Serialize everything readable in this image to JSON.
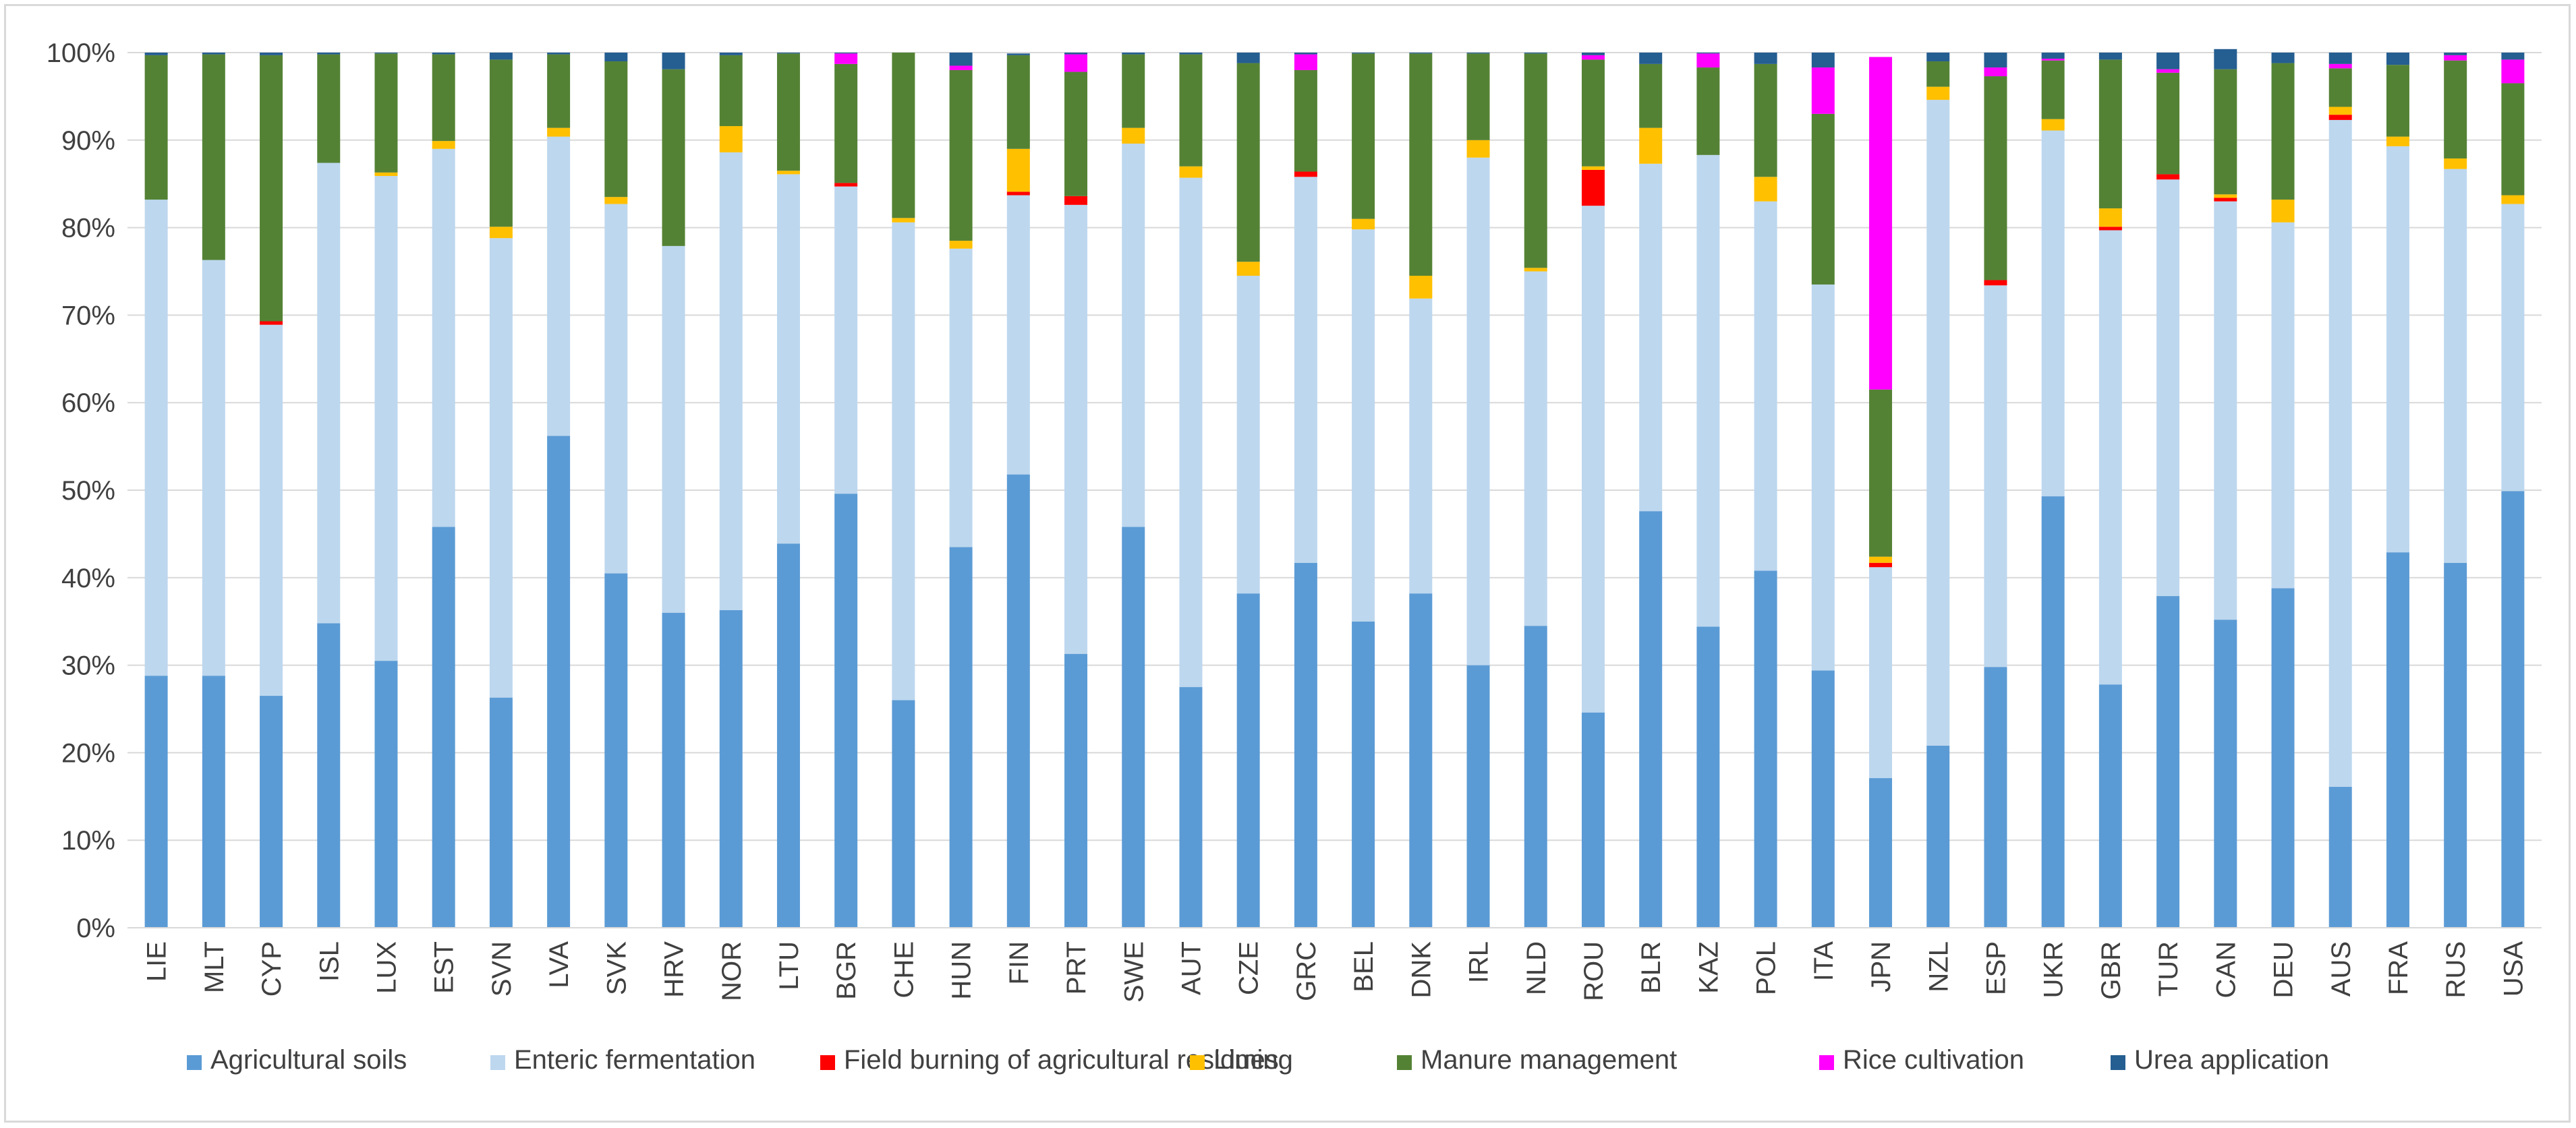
{
  "chart_data": {
    "type": "bar",
    "stacked": true,
    "ylim": [
      0,
      100
    ],
    "ytick_labels": [
      "0%",
      "10%",
      "20%",
      "30%",
      "40%",
      "50%",
      "60%",
      "70%",
      "80%",
      "90%",
      "100%"
    ],
    "legend_position": "bottom",
    "categories": [
      "LIE",
      "MLT",
      "CYP",
      "ISL",
      "LUX",
      "EST",
      "SVN",
      "LVA",
      "SVK",
      "HRV",
      "NOR",
      "LTU",
      "BGR",
      "CHE",
      "HUN",
      "FIN",
      "PRT",
      "SWE",
      "AUT",
      "CZE",
      "GRC",
      "BEL",
      "DNK",
      "IRL",
      "NLD",
      "ROU",
      "BLR",
      "KAZ",
      "POL",
      "ITA",
      "JPN",
      "NZL",
      "ESP",
      "UKR",
      "GBR",
      "TUR",
      "CAN",
      "DEU",
      "AUS",
      "FRA",
      "RUS",
      "USA"
    ],
    "series": [
      {
        "name": "Agricultural soils",
        "color": "#5b9bd5",
        "values": [
          28.8,
          28.8,
          26.5,
          34.8,
          30.5,
          45.8,
          26.3,
          56.2,
          40.5,
          36.0,
          36.3,
          43.9,
          49.6,
          26.0,
          43.5,
          51.8,
          31.3,
          45.8,
          27.5,
          38.2,
          41.7,
          35.0,
          38.2,
          30.0,
          34.5,
          24.6,
          47.6,
          34.4,
          40.8,
          29.4,
          17.1,
          20.8,
          29.8,
          49.3,
          27.8,
          37.9,
          35.2,
          38.8,
          16.1,
          42.9,
          41.7,
          49.9
        ]
      },
      {
        "name": "Enteric fermentation",
        "color": "#bdd7ee",
        "values": [
          54.4,
          47.5,
          42.4,
          52.6,
          55.4,
          43.2,
          52.5,
          34.2,
          42.2,
          41.9,
          52.3,
          42.2,
          35.1,
          54.6,
          34.1,
          31.9,
          51.3,
          43.8,
          58.2,
          36.3,
          44.1,
          44.8,
          33.7,
          58.0,
          40.5,
          57.9,
          39.7,
          53.9,
          42.2,
          44.1,
          24.1,
          73.8,
          43.6,
          41.8,
          51.9,
          47.6,
          47.8,
          41.8,
          76.2,
          46.4,
          45.0,
          32.8
        ]
      },
      {
        "name": "Field burning of agricultural residues",
        "color": "#ff0000",
        "values": [
          0,
          0,
          0.4,
          0,
          0,
          0,
          0,
          0,
          0,
          0,
          0,
          0,
          0.4,
          0,
          0,
          0.4,
          1.0,
          0,
          0,
          0,
          0.6,
          0,
          0,
          0,
          0,
          4.1,
          0,
          0,
          0,
          0,
          0.5,
          0,
          0.6,
          0,
          0.4,
          0.6,
          0.4,
          0,
          0.6,
          0,
          0,
          0
        ]
      },
      {
        "name": "Liming",
        "color": "#ffc000",
        "values": [
          0,
          0,
          0,
          0,
          0.4,
          0.9,
          1.3,
          1.0,
          0.8,
          0,
          3.0,
          0.4,
          0,
          0.5,
          0.9,
          4.9,
          0,
          1.8,
          1.3,
          1.6,
          0,
          1.2,
          2.6,
          2.0,
          0.4,
          0.4,
          4.1,
          0,
          2.8,
          0,
          0.7,
          1.5,
          0,
          1.3,
          2.1,
          0,
          0.4,
          2.6,
          0.9,
          1.1,
          1.2,
          1.0
        ]
      },
      {
        "name": "Manure management",
        "color": "#548235",
        "values": [
          16.5,
          23.5,
          30.4,
          12.4,
          13.6,
          9.9,
          19.1,
          8.4,
          15.5,
          20.2,
          8.1,
          13.4,
          13.6,
          18.9,
          19.5,
          10.7,
          14.2,
          8.4,
          12.8,
          22.7,
          11.6,
          18.9,
          25.4,
          9.9,
          24.5,
          12.2,
          7.3,
          10.0,
          12.9,
          19.5,
          19.1,
          2.9,
          23.3,
          6.7,
          17.0,
          11.6,
          14.3,
          15.6,
          4.4,
          8.2,
          11.2,
          12.8
        ]
      },
      {
        "name": "Rice cultivation",
        "color": "#ff00ff",
        "values": [
          0,
          0,
          0,
          0,
          0,
          0,
          0,
          0,
          0,
          0,
          0,
          0,
          1.2,
          0,
          0.5,
          0,
          2.0,
          0,
          0,
          0,
          1.8,
          0,
          0,
          0,
          0,
          0.5,
          0,
          1.6,
          0,
          5.3,
          38.0,
          0,
          1.0,
          0.2,
          0,
          0.4,
          0,
          0,
          0.5,
          0,
          0.6,
          2.7
        ]
      },
      {
        "name": "Urea application",
        "color": "#255e91",
        "values": [
          0.3,
          0.2,
          0.3,
          0.2,
          0.1,
          0.2,
          0.8,
          0.2,
          1.0,
          1.9,
          0.3,
          0.1,
          0.1,
          0,
          1.5,
          0.2,
          0.2,
          0.2,
          0.2,
          1.2,
          0.2,
          0.1,
          0.1,
          0.1,
          0.1,
          0.3,
          1.3,
          0.1,
          1.3,
          1.7,
          0,
          1.0,
          1.7,
          0.7,
          0.8,
          1.9,
          2.3,
          1.2,
          1.3,
          1.4,
          0.3,
          0.8
        ]
      }
    ]
  }
}
